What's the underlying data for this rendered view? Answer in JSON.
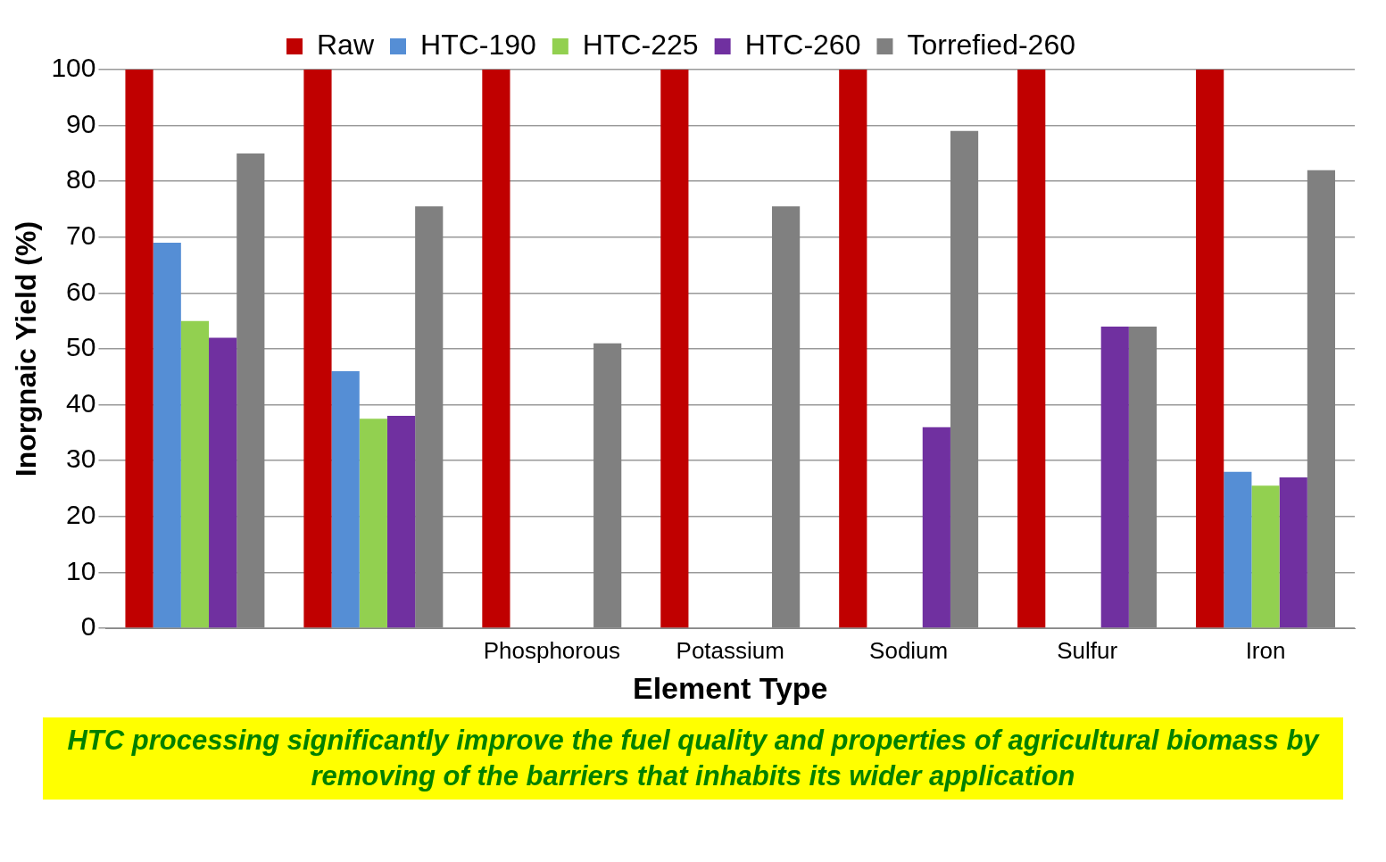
{
  "chart_data": {
    "type": "bar",
    "xlabel": "Element Type",
    "ylabel": "Inorgnaic Yield (%)",
    "categories": [
      null,
      null,
      "Phosphorous",
      "Potassium",
      "Sodium",
      "Sulfur",
      "Iron"
    ],
    "series": [
      {
        "name": "Raw",
        "color": "#c00000",
        "values": [
          100,
          100,
          100,
          100,
          100,
          100,
          100
        ]
      },
      {
        "name": "HTC-190",
        "color": "#558ed5",
        "values": [
          69,
          46,
          null,
          null,
          null,
          null,
          28
        ]
      },
      {
        "name": "HTC-225",
        "color": "#92d050",
        "values": [
          55,
          37.5,
          null,
          null,
          null,
          null,
          25.5
        ]
      },
      {
        "name": "HTC-260",
        "color": "#7030a0",
        "values": [
          52,
          38,
          null,
          null,
          36,
          54,
          27
        ]
      },
      {
        "name": "Torrefied-260",
        "color": "#808080",
        "values": [
          85,
          75.5,
          51,
          75.5,
          89,
          54,
          82
        ]
      }
    ],
    "ylim": [
      0,
      100
    ],
    "yticks": [
      0,
      10,
      20,
      30,
      40,
      50,
      60,
      70,
      80,
      90,
      100
    ],
    "grid": "y",
    "legend": "top",
    "annotations": [
      "HTC processing significantly improve the fuel quality and properties  of agricultural biomass by removing of the barriers  that inhabits its wider application"
    ]
  }
}
